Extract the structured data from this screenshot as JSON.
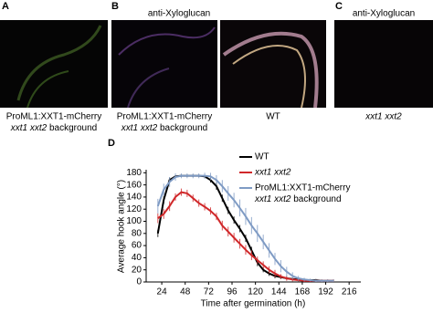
{
  "panels": [
    {
      "label": "A",
      "caption": [
        "ProML1:XXT1-mCherry",
        "xxt1 xxt2",
        "background"
      ]
    },
    {
      "label": "B",
      "title": "anti-Xyloglucan",
      "caption_left": [
        "ProML1:XXT1-mCherry",
        "xxt1 xxt2",
        "background"
      ],
      "caption_right": "WT"
    },
    {
      "label": "C",
      "title": "anti-Xyloglucan",
      "caption": "xxt1 xxt2"
    },
    {
      "label": "D"
    }
  ],
  "chart_data": {
    "type": "line",
    "x_label": "Time after germination (h)",
    "y_label": "Average hook angle (°)",
    "x": [
      20,
      26,
      32,
      38,
      44,
      50,
      56,
      62,
      68,
      74,
      80,
      86,
      92,
      98,
      104,
      110,
      116,
      122,
      128,
      134,
      140,
      146,
      152,
      158,
      164,
      170,
      176,
      182,
      188,
      194,
      200
    ],
    "series": [
      {
        "name": "WT",
        "color": "#000000",
        "values": [
          80,
          135,
          168,
          174,
          175,
          175,
          175,
          175,
          174,
          168,
          158,
          138,
          118,
          102,
          88,
          72,
          52,
          32,
          20,
          14,
          10,
          8,
          6,
          5,
          4,
          3,
          3,
          3,
          2,
          2,
          2
        ],
        "errors": [
          6,
          6,
          4,
          2,
          2,
          2,
          2,
          2,
          2,
          4,
          6,
          6,
          6,
          6,
          6,
          6,
          6,
          6,
          4,
          4,
          4,
          3,
          2,
          2,
          2,
          2,
          2,
          2,
          2,
          2,
          2
        ]
      },
      {
        "name": "xxt1 xxt2",
        "color": "#d0282a",
        "values": [
          105,
          112,
          125,
          140,
          148,
          146,
          138,
          130,
          124,
          117,
          108,
          93,
          83,
          73,
          63,
          53,
          44,
          36,
          28,
          20,
          14,
          9,
          6,
          4,
          3,
          2,
          2,
          2,
          2,
          2,
          2
        ],
        "errors": [
          8,
          8,
          8,
          6,
          6,
          6,
          6,
          6,
          6,
          6,
          6,
          8,
          8,
          8,
          8,
          8,
          8,
          6,
          6,
          6,
          6,
          4,
          4,
          3,
          2,
          2,
          2,
          2,
          2,
          2,
          2
        ]
      },
      {
        "name": [
          "ProML1:XXT1-mCherry",
          "xxt1 xxt2",
          "background"
        ],
        "color": "#7f9bc4",
        "values": [
          125,
          152,
          165,
          173,
          175,
          175,
          175,
          175,
          175,
          174,
          168,
          158,
          146,
          135,
          122,
          108,
          93,
          80,
          66,
          52,
          38,
          26,
          17,
          10,
          6,
          4,
          3,
          2,
          2,
          2,
          2
        ],
        "errors": [
          12,
          10,
          8,
          6,
          4,
          4,
          4,
          4,
          5,
          6,
          8,
          10,
          12,
          12,
          14,
          14,
          14,
          14,
          12,
          12,
          10,
          10,
          8,
          6,
          4,
          3,
          2,
          2,
          2,
          2,
          2
        ]
      }
    ],
    "xlim": [
      8,
      228
    ],
    "ylim": [
      0,
      185
    ],
    "xticks": [
      24,
      48,
      72,
      96,
      120,
      144,
      168,
      192,
      216
    ],
    "yticks": [
      0,
      20,
      40,
      60,
      80,
      100,
      120,
      140,
      160,
      180
    ]
  }
}
